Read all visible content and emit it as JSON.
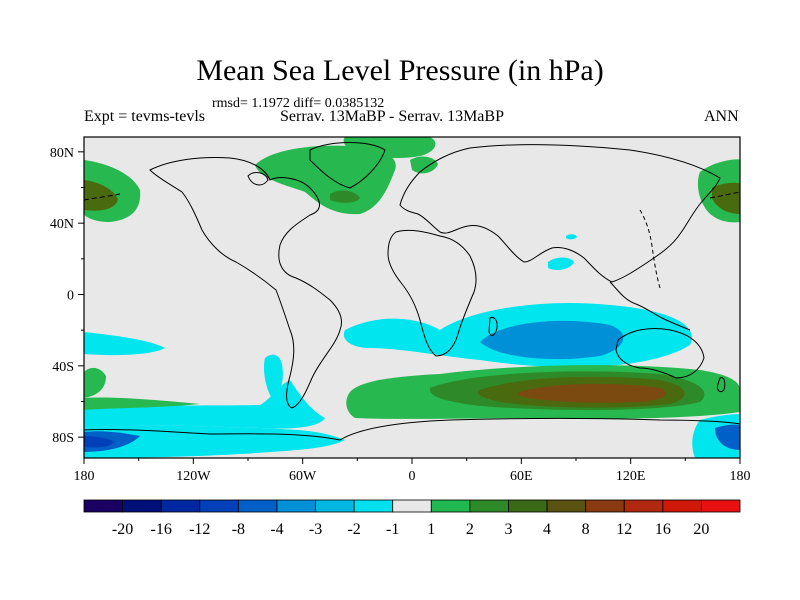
{
  "title": "Mean Sea Level Pressure (in hPa)",
  "subtitle": "rmsd= 1.1972 diff= 0.0385132",
  "left_label": "Expt = tevms-tevls",
  "center_label": "Serrav.  13MaBP - Serrav.  13MaBP",
  "right_label": "ANN",
  "colors": {
    "background_map": "#e8e8e8",
    "coast": "#000000",
    "c_m1": "#00e5ee",
    "c_m2": "#00c0e0",
    "c_m3": "#0090d8",
    "c_m4": "#0050b0",
    "c_p1": "#27b850",
    "c_p2": "#2e8a28",
    "c_p3": "#4a6a10",
    "c_p4": "#7a4a10"
  },
  "map": {
    "lon_ticks": [
      "180",
      "120W",
      "60W",
      "0",
      "60E",
      "120E",
      "180"
    ],
    "lat_ticks": [
      "80N",
      "40N",
      "0",
      "40S",
      "80S"
    ]
  },
  "colorbar": {
    "labels": [
      "-20",
      "-16",
      "-12",
      "-8",
      "-4",
      "-3",
      "-2",
      "-1",
      "1",
      "2",
      "3",
      "4",
      "8",
      "12",
      "16",
      "20"
    ],
    "colors": [
      "#1a0060",
      "#00107a",
      "#0028a0",
      "#0040b8",
      "#0060c8",
      "#0090d8",
      "#00b8e0",
      "#00e0ee",
      "#e8e8e8",
      "#20b850",
      "#2e8a28",
      "#3a6a18",
      "#5a5210",
      "#8a3a10",
      "#b02810",
      "#d01808",
      "#e81010"
    ]
  }
}
